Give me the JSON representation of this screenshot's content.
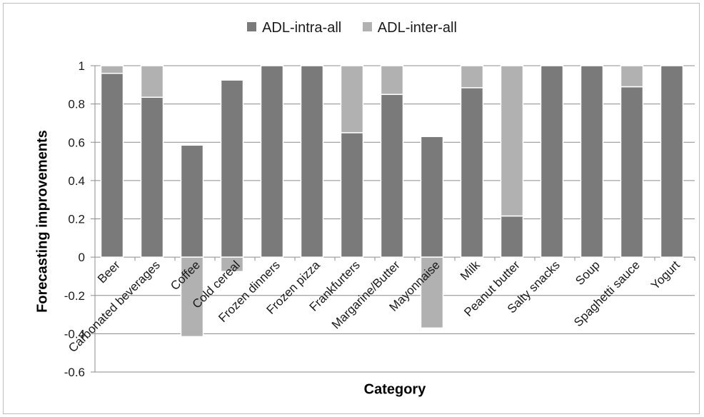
{
  "chart_data": {
    "type": "bar",
    "stacked": true,
    "title": "",
    "xlabel": "Category",
    "ylabel": "Forecasting improvements",
    "ylim": [
      -0.6,
      1
    ],
    "yticks": [
      "1",
      "0.8",
      "0.6",
      "0.4",
      "0.2",
      "0",
      "-0.2",
      "-0.4",
      "-0.6"
    ],
    "grid": true,
    "legend_position": "top",
    "categories": [
      "Beer",
      "Carbonated beverages",
      "Coffee",
      "Cold cereal",
      "Frozen dinners",
      "Frozen pizza",
      "Frankfurters",
      "Margarine/Butter",
      "Mayonnaise",
      "Milk",
      "Peanut butter",
      "Salty snacks",
      "Soup",
      "Spaghetti sauce",
      "Yogurt"
    ],
    "series": [
      {
        "name": "ADL-intra-all",
        "color": "#7a7a7a",
        "values": [
          0.96,
          0.835,
          0.585,
          0.925,
          1.0,
          1.0,
          0.65,
          0.85,
          0.63,
          0.885,
          0.215,
          1.0,
          1.0,
          0.89,
          1.0
        ]
      },
      {
        "name": "ADL-inter-all",
        "color": "#b1b1b1",
        "values": [
          0.04,
          0.165,
          -0.415,
          -0.075,
          0.0,
          0.0,
          0.35,
          0.15,
          -0.37,
          0.115,
          0.785,
          0.0,
          0.0,
          0.11,
          0.0
        ]
      }
    ]
  }
}
